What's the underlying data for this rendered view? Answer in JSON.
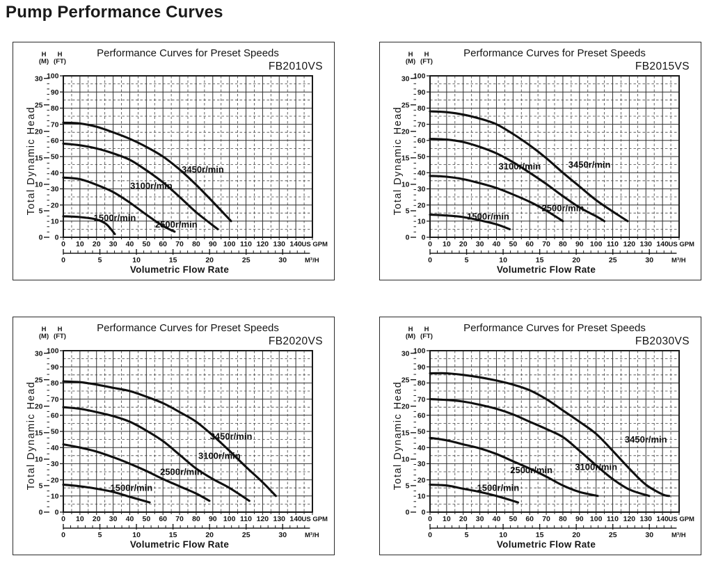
{
  "page": {
    "title": "Pump Performance Curves"
  },
  "shared": {
    "y_axis_label": "Total Dynamic Head",
    "x_axis_label": "Volumetric Flow Rate",
    "y_left_unit_line1": "H",
    "y_left_unit_line2": "(M)",
    "y_right_unit_line1": "H",
    "y_right_unit_line2": "(FT)",
    "gpm_unit": "US GPM",
    "m3h_unit": "M³/H",
    "ft_ticks": [
      0,
      10,
      20,
      30,
      40,
      50,
      60,
      70,
      80,
      90,
      100
    ],
    "m_ticks": [
      0,
      5,
      10,
      15,
      20,
      25,
      30
    ],
    "gpm_ticks": [
      0,
      10,
      20,
      30,
      40,
      50,
      60,
      70,
      80,
      90,
      100,
      110,
      120,
      130,
      140
    ],
    "m3h_ticks": [
      0,
      5,
      10,
      15,
      20,
      25,
      30
    ],
    "m_per_ft": 3.28084,
    "gpm_per_m3h": 4.40287,
    "colors": {
      "curve": "#101010",
      "grid_major": "#2f2f2f",
      "grid_minor": "#3d3d3d",
      "border": "#191919",
      "text": "#141414"
    }
  },
  "chart_data": [
    {
      "type": "line",
      "title": "Performance Curves for Preset Speeds",
      "model": "FB2010VS",
      "xlabel": "Volumetric Flow Rate",
      "ylabel": "Total Dynamic Head",
      "x_units": [
        "US GPM",
        "M³/H"
      ],
      "y_units": [
        "H (M)",
        "H (FT)"
      ],
      "xlim_gpm": [
        0,
        150
      ],
      "ylim_ft": [
        0,
        100
      ],
      "series": [
        {
          "name": "3450r/min",
          "rpm": 3450,
          "label_at": [
            84,
            42
          ],
          "points": [
            [
              0,
              71
            ],
            [
              10,
              70.5
            ],
            [
              20,
              68.5
            ],
            [
              30,
              65
            ],
            [
              40,
              61
            ],
            [
              50,
              56
            ],
            [
              60,
              50
            ],
            [
              70,
              42
            ],
            [
              80,
              32.5
            ],
            [
              90,
              22
            ],
            [
              101,
              10
            ]
          ]
        },
        {
          "name": "3100r/min",
          "rpm": 3100,
          "label_at": [
            53,
            32
          ],
          "points": [
            [
              0,
              58
            ],
            [
              10,
              57
            ],
            [
              20,
              55
            ],
            [
              30,
              52
            ],
            [
              40,
              48
            ],
            [
              50,
              41.5
            ],
            [
              60,
              34
            ],
            [
              70,
              25
            ],
            [
              80,
              15.5
            ],
            [
              93,
              5
            ]
          ]
        },
        {
          "name": "2500r/min",
          "rpm": 2500,
          "label_at": [
            68,
            8
          ],
          "points": [
            [
              0,
              37
            ],
            [
              10,
              36
            ],
            [
              20,
              32.5
            ],
            [
              30,
              28
            ],
            [
              40,
              21.5
            ],
            [
              50,
              14
            ],
            [
              60,
              7
            ],
            [
              67,
              3.5
            ]
          ]
        },
        {
          "name": "1500r/min",
          "rpm": 1500,
          "label_at": [
            31,
            12
          ],
          "points": [
            [
              0,
              13
            ],
            [
              10,
              12.5
            ],
            [
              20,
              11
            ],
            [
              26,
              8
            ],
            [
              31,
              2
            ]
          ]
        }
      ]
    },
    {
      "type": "line",
      "title": "Performance Curves for Preset Speeds",
      "model": "FB2015VS",
      "xlabel": "Volumetric Flow Rate",
      "ylabel": "Total Dynamic Head",
      "x_units": [
        "US GPM",
        "M³/H"
      ],
      "y_units": [
        "H (M)",
        "H (FT)"
      ],
      "xlim_gpm": [
        0,
        150
      ],
      "ylim_ft": [
        0,
        100
      ],
      "series": [
        {
          "name": "3450r/min",
          "rpm": 3450,
          "label_at": [
            96,
            45
          ],
          "points": [
            [
              0,
              78
            ],
            [
              10,
              77.5
            ],
            [
              20,
              76
            ],
            [
              30,
              73.5
            ],
            [
              40,
              70
            ],
            [
              50,
              64
            ],
            [
              60,
              57
            ],
            [
              70,
              49
            ],
            [
              80,
              40
            ],
            [
              90,
              31.5
            ],
            [
              100,
              23
            ],
            [
              110,
              16
            ],
            [
              119,
              10
            ]
          ]
        },
        {
          "name": "3100r/min",
          "rpm": 3100,
          "label_at": [
            54,
            44
          ],
          "points": [
            [
              0,
              61
            ],
            [
              10,
              60.5
            ],
            [
              20,
              59
            ],
            [
              30,
              56
            ],
            [
              40,
              52
            ],
            [
              50,
              46.5
            ],
            [
              60,
              40
            ],
            [
              70,
              33
            ],
            [
              80,
              25.5
            ],
            [
              90,
              18.5
            ],
            [
              100,
              13
            ],
            [
              105,
              10
            ]
          ]
        },
        {
          "name": "2500r/min",
          "rpm": 2500,
          "label_at": [
            80,
            18
          ],
          "points": [
            [
              0,
              38
            ],
            [
              10,
              37.5
            ],
            [
              20,
              36
            ],
            [
              30,
              33.5
            ],
            [
              40,
              30.5
            ],
            [
              50,
              26.5
            ],
            [
              60,
              22
            ],
            [
              70,
              16.5
            ],
            [
              80,
              10
            ]
          ]
        },
        {
          "name": "1500r/min",
          "rpm": 1500,
          "label_at": [
            35,
            13
          ],
          "points": [
            [
              0,
              14
            ],
            [
              10,
              13.5
            ],
            [
              20,
              12.5
            ],
            [
              30,
              10.5
            ],
            [
              40,
              8
            ],
            [
              48,
              5
            ]
          ]
        }
      ]
    },
    {
      "type": "line",
      "title": "Performance Curves for Preset Speeds",
      "model": "FB2020VS",
      "xlabel": "Volumetric Flow Rate",
      "ylabel": "Total Dynamic Head",
      "x_units": [
        "US GPM",
        "M³/H"
      ],
      "y_units": [
        "H (M)",
        "H (FT)"
      ],
      "xlim_gpm": [
        0,
        150
      ],
      "ylim_ft": [
        0,
        100
      ],
      "series": [
        {
          "name": "3450r/min",
          "rpm": 3450,
          "label_at": [
            101,
            47
          ],
          "points": [
            [
              0,
              81
            ],
            [
              10,
              80.5
            ],
            [
              20,
              79
            ],
            [
              30,
              77
            ],
            [
              40,
              75
            ],
            [
              50,
              71.5
            ],
            [
              60,
              67.5
            ],
            [
              70,
              62
            ],
            [
              80,
              56
            ],
            [
              90,
              47.5
            ],
            [
              100,
              38
            ],
            [
              110,
              28
            ],
            [
              120,
              18.5
            ],
            [
              128,
              10
            ]
          ]
        },
        {
          "name": "3100r/min",
          "rpm": 3100,
          "label_at": [
            94,
            35
          ],
          "points": [
            [
              0,
              65
            ],
            [
              10,
              64
            ],
            [
              20,
              62
            ],
            [
              30,
              59.5
            ],
            [
              40,
              56
            ],
            [
              50,
              50.5
            ],
            [
              60,
              44
            ],
            [
              70,
              35.5
            ],
            [
              80,
              27
            ],
            [
              90,
              20.5
            ],
            [
              100,
              15
            ],
            [
              112,
              7
            ]
          ]
        },
        {
          "name": "2500r/min",
          "rpm": 2500,
          "label_at": [
            71,
            25
          ],
          "points": [
            [
              0,
              42
            ],
            [
              10,
              40
            ],
            [
              20,
              37.5
            ],
            [
              30,
              34
            ],
            [
              40,
              30
            ],
            [
              50,
              25.5
            ],
            [
              60,
              20.5
            ],
            [
              70,
              16
            ],
            [
              80,
              11.5
            ],
            [
              88,
              7
            ]
          ]
        },
        {
          "name": "1500r/min",
          "rpm": 1500,
          "label_at": [
            41,
            15
          ],
          "points": [
            [
              0,
              17
            ],
            [
              10,
              16
            ],
            [
              20,
              14.5
            ],
            [
              30,
              12.5
            ],
            [
              40,
              9.5
            ],
            [
              52,
              6
            ]
          ]
        }
      ]
    },
    {
      "type": "line",
      "title": "Performance Curves for Preset Speeds",
      "model": "FB2030VS",
      "xlabel": "Volumetric Flow Rate",
      "ylabel": "Total Dynamic Head",
      "x_units": [
        "US GPM",
        "M³/H"
      ],
      "y_units": [
        "H (M)",
        "H (FT)"
      ],
      "xlim_gpm": [
        0,
        150
      ],
      "ylim_ft": [
        0,
        100
      ],
      "series": [
        {
          "name": "3450r/min",
          "rpm": 3450,
          "label_at": [
            130,
            45
          ],
          "points": [
            [
              0,
              86
            ],
            [
              10,
              86
            ],
            [
              20,
              85
            ],
            [
              30,
              83.5
            ],
            [
              40,
              81.5
            ],
            [
              50,
              79
            ],
            [
              60,
              75.5
            ],
            [
              70,
              70
            ],
            [
              80,
              63
            ],
            [
              90,
              56
            ],
            [
              100,
              48.5
            ],
            [
              110,
              38
            ],
            [
              120,
              27
            ],
            [
              130,
              17
            ],
            [
              140,
              11
            ],
            [
              144,
              10
            ]
          ]
        },
        {
          "name": "3100r/min",
          "rpm": 3100,
          "label_at": [
            100,
            28
          ],
          "points": [
            [
              0,
              70
            ],
            [
              10,
              69.5
            ],
            [
              20,
              68.5
            ],
            [
              30,
              66.5
            ],
            [
              40,
              64
            ],
            [
              50,
              60.5
            ],
            [
              60,
              56
            ],
            [
              70,
              51.5
            ],
            [
              80,
              46.5
            ],
            [
              90,
              38
            ],
            [
              100,
              29
            ],
            [
              110,
              20.5
            ],
            [
              120,
              14
            ],
            [
              132,
              10
            ]
          ]
        },
        {
          "name": "2500r/min",
          "rpm": 2500,
          "label_at": [
            61,
            26
          ],
          "points": [
            [
              0,
              46
            ],
            [
              10,
              44.5
            ],
            [
              20,
              42
            ],
            [
              30,
              39.5
            ],
            [
              40,
              36
            ],
            [
              50,
              31.5
            ],
            [
              60,
              27
            ],
            [
              70,
              22
            ],
            [
              80,
              16.5
            ],
            [
              90,
              12.5
            ],
            [
              101,
              10
            ]
          ]
        },
        {
          "name": "1500r/min",
          "rpm": 1500,
          "label_at": [
            41,
            15
          ],
          "points": [
            [
              0,
              17
            ],
            [
              10,
              16.5
            ],
            [
              20,
              14.5
            ],
            [
              30,
              12.5
            ],
            [
              40,
              10
            ],
            [
              53,
              6
            ]
          ]
        }
      ]
    }
  ]
}
